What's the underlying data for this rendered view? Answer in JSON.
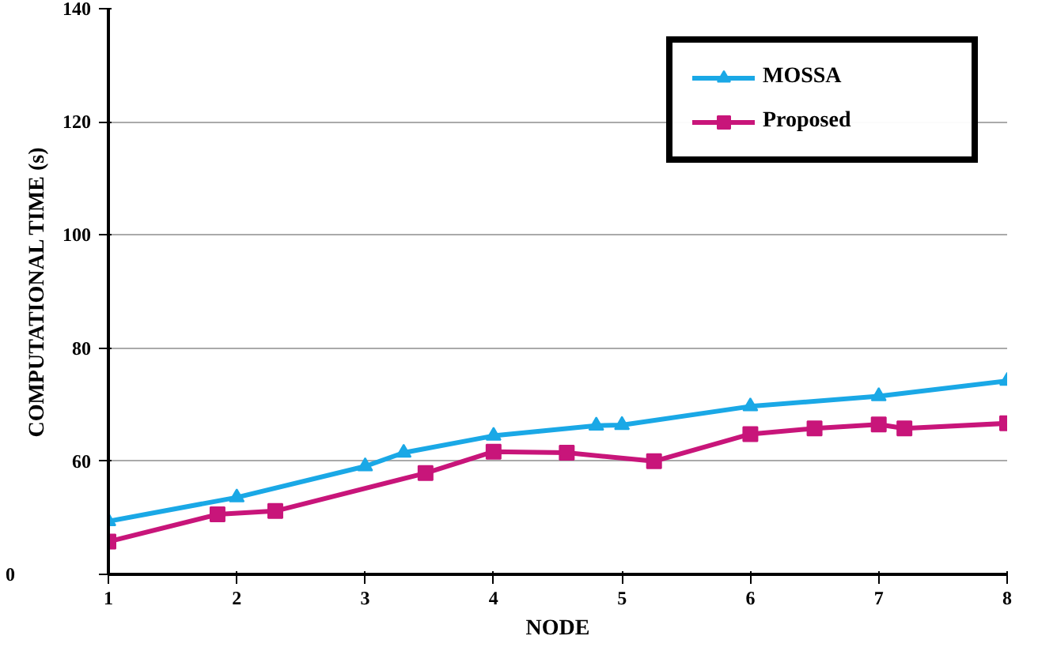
{
  "chart_data": {
    "type": "line",
    "xlabel": "NODE",
    "ylabel": "COMPUTATIONAL TIME (s)",
    "xlim": [
      1,
      8
    ],
    "xticks": [
      1,
      2,
      3,
      4,
      5,
      6,
      7,
      8
    ],
    "ylim": [
      40,
      140
    ],
    "yticks": [
      {
        "value": 40,
        "label": null
      },
      60,
      80,
      100,
      120,
      140
    ],
    "annotations": [
      "0"
    ],
    "grid": "y",
    "legend": "top right",
    "series": [
      {
        "name": "MOSSA",
        "color": "#1aa8e6",
        "marker": "triangle",
        "x": [
          1,
          2,
          3,
          3.3,
          4,
          4.8,
          5,
          6,
          7,
          8
        ],
        "values": [
          49.4,
          53.6,
          59.1,
          61.5,
          64.5,
          66.3,
          66.4,
          69.7,
          71.5,
          74.2
        ]
      },
      {
        "name": "Proposed",
        "color": "#c8157a",
        "marker": "square",
        "x": [
          1,
          1.85,
          2.3,
          3.47,
          4,
          4.57,
          5.25,
          6,
          6.5,
          7,
          7.2,
          8
        ],
        "values": [
          45.8,
          50.6,
          51.2,
          57.9,
          61.7,
          61.5,
          60,
          64.8,
          65.8,
          66.5,
          65.8,
          66.7
        ]
      }
    ]
  }
}
